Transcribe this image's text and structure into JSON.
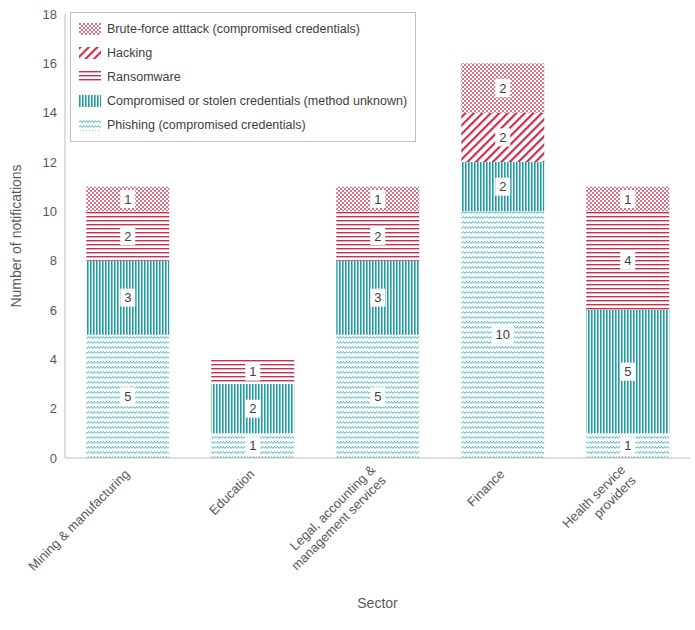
{
  "chart_data": {
    "type": "bar",
    "x_label": "Sector",
    "y_label": "Number of notifications",
    "categories": [
      "Mining & manufacturing",
      "Education",
      "Legal, accounting & management services",
      "Finance",
      "Health service providers"
    ],
    "series": [
      {
        "name": "Phishing (compromised credentials)",
        "color": "#3cb4b9",
        "values": [
          5,
          1,
          5,
          10,
          1
        ]
      },
      {
        "name": "Compromised or stolen credentials (method unknown)",
        "color": "#1c9ea4",
        "values": [
          3,
          2,
          3,
          2,
          5
        ]
      },
      {
        "name": "Ransomware",
        "color": "#c9304c",
        "values": [
          2,
          1,
          2,
          0,
          4
        ]
      },
      {
        "name": "Hacking",
        "color": "#c9304c",
        "values": [
          0,
          0,
          0,
          2,
          0
        ]
      },
      {
        "name": "Brute-force atttack (compromised credentials)",
        "color": "#c9304c",
        "values": [
          1,
          0,
          1,
          2,
          1
        ]
      }
    ],
    "ylim": [
      0,
      18
    ],
    "yticks": [
      0,
      2,
      4,
      6,
      8,
      10,
      12,
      14,
      16,
      18
    ],
    "stacked": true,
    "data_labels": true,
    "grid": false,
    "legend": "upper left"
  }
}
